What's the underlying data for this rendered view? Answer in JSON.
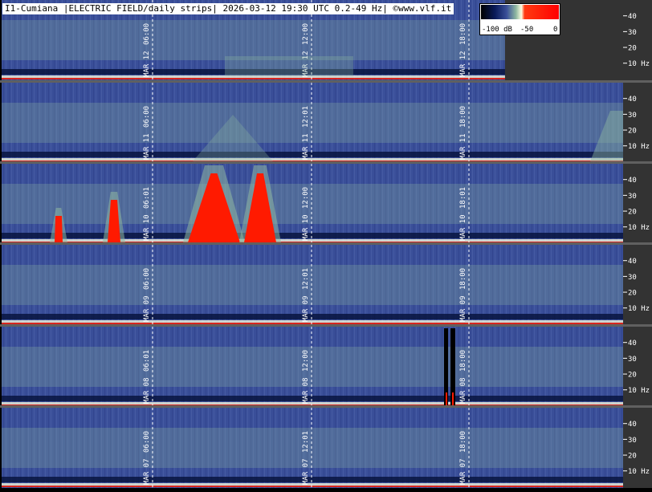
{
  "title": "I1-Cumiana |ELECTRIC FIELD/daily strips| 2026-03-12 19:30 UTC 0.2-49 Hz| ©www.vlf.it",
  "scale": {
    "labels": [
      "-100 dB",
      "-50",
      "0"
    ]
  },
  "colors": {
    "background": "#3a4f99",
    "mid": "#8fb8a0",
    "high": "#ffffe0",
    "saturated": "#ff1a00",
    "panel": "#333333"
  },
  "chart_data": {
    "type": "heatmap",
    "title": "I1-Cumiana |ELECTRIC FIELD/daily strips| 2026-03-12 19:30 UTC 0.2-49 Hz| ©www.vlf.it",
    "frequency_range_hz": [
      0.2,
      49
    ],
    "y_ticks": [
      "10 Hz",
      "20",
      "30",
      "40"
    ],
    "color_scale_db": [
      -100,
      0
    ],
    "color_scale_labels": [
      "-100 dB",
      "-50",
      "0"
    ],
    "strips": [
      {
        "date": "MAR 12",
        "time_labels": [
          "06:00",
          "12:00",
          "18:00"
        ],
        "data_until_fraction": 0.81
      },
      {
        "date": "MAR 11",
        "time_labels": [
          "06:00",
          "12:01",
          "18:00"
        ],
        "data_until_fraction": 1.0
      },
      {
        "date": "MAR 10",
        "time_labels": [
          "06:01",
          "12:00",
          "18:01"
        ],
        "data_until_fraction": 1.0
      },
      {
        "date": "MAR 09",
        "time_labels": [
          "06:00",
          "12:01",
          "18:00"
        ],
        "data_until_fraction": 1.0
      },
      {
        "date": "MAR 08",
        "time_labels": [
          "06:01",
          "12:00",
          "18:00"
        ],
        "data_until_fraction": 1.0
      },
      {
        "date": "MAR 07",
        "time_labels": [
          "06:00",
          "12:01",
          "18:00"
        ],
        "data_until_fraction": 1.0
      }
    ]
  }
}
